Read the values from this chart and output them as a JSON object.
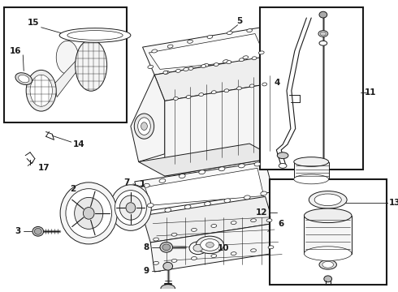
{
  "bg_color": "#ffffff",
  "line_color": "#1a1a1a",
  "fig_width": 4.9,
  "fig_height": 3.6,
  "dpi": 100,
  "label_fs": 7.5,
  "lw": 0.7
}
